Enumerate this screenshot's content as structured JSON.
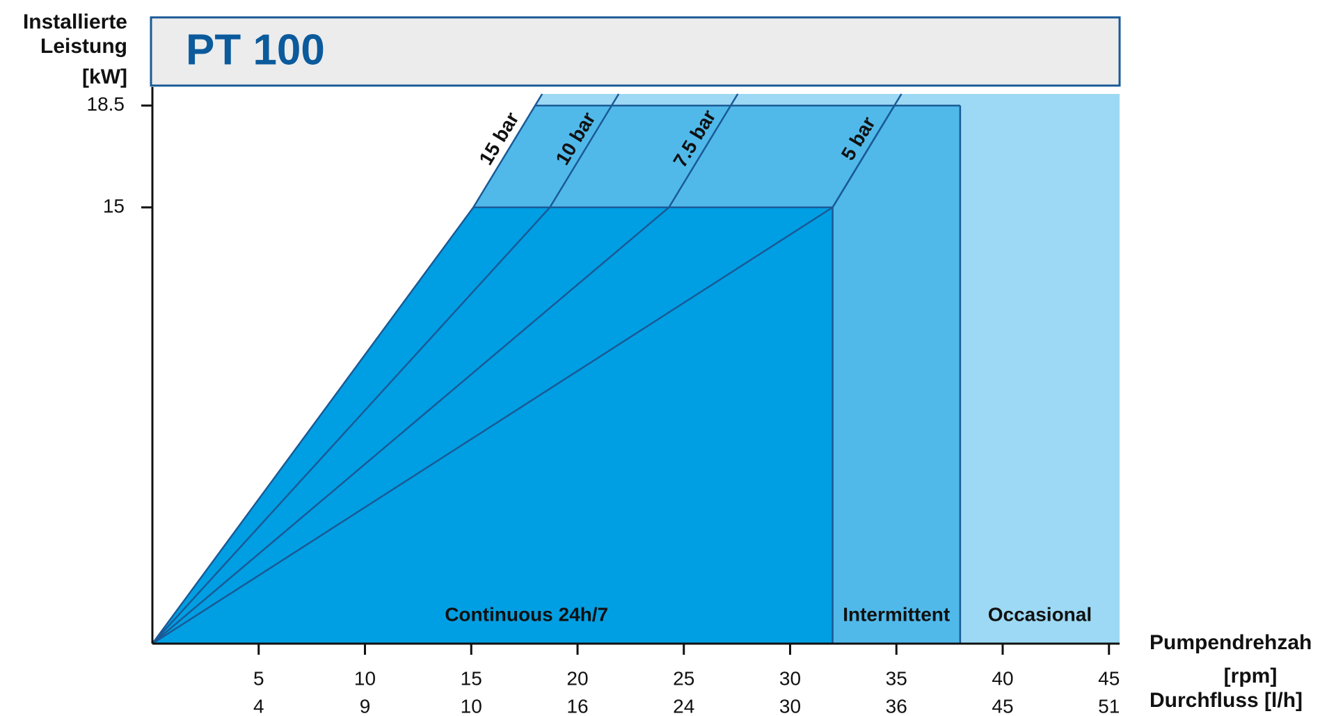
{
  "chart_data": {
    "type": "operating-range",
    "title": "PT 100",
    "ylabel": [
      "Installierte",
      "Leistung",
      "[kW]"
    ],
    "xlabel": [
      "Pumpendrehzah",
      "[rpm]"
    ],
    "x2label": "Durchfluss [l/h]",
    "xlim": [
      0,
      45.5
    ],
    "ylim": [
      0,
      18.9
    ],
    "xticks": [
      5,
      10,
      15,
      20,
      25,
      30,
      35,
      40,
      45
    ],
    "x2ticks": [
      4,
      9,
      10,
      16,
      24,
      30,
      36,
      45,
      51
    ],
    "yticks": [
      15,
      18.5
    ],
    "zones": [
      {
        "name": "Continuous 24h/7",
        "xmax": 32,
        "ymax": 15,
        "color": "#009fe3"
      },
      {
        "name": "Intermittent",
        "xmax": 38,
        "ymax": 18.5,
        "color": "#50b9ea"
      },
      {
        "name": "Occasional",
        "xmax": 45.5,
        "color": "#9dd9f4"
      }
    ],
    "series": [
      {
        "name": "15 bar",
        "x": [
          0,
          15.1
        ],
        "values": [
          0,
          15
        ]
      },
      {
        "name": "10 bar",
        "x": [
          0,
          18.7
        ],
        "values": [
          0,
          15
        ]
      },
      {
        "name": "7.5 bar",
        "x": [
          0,
          24.3
        ],
        "values": [
          0,
          15
        ]
      },
      {
        "name": "5 bar",
        "x": [
          0,
          32
        ],
        "values": [
          0,
          15
        ]
      }
    ],
    "line_color": "#1a5a96"
  }
}
